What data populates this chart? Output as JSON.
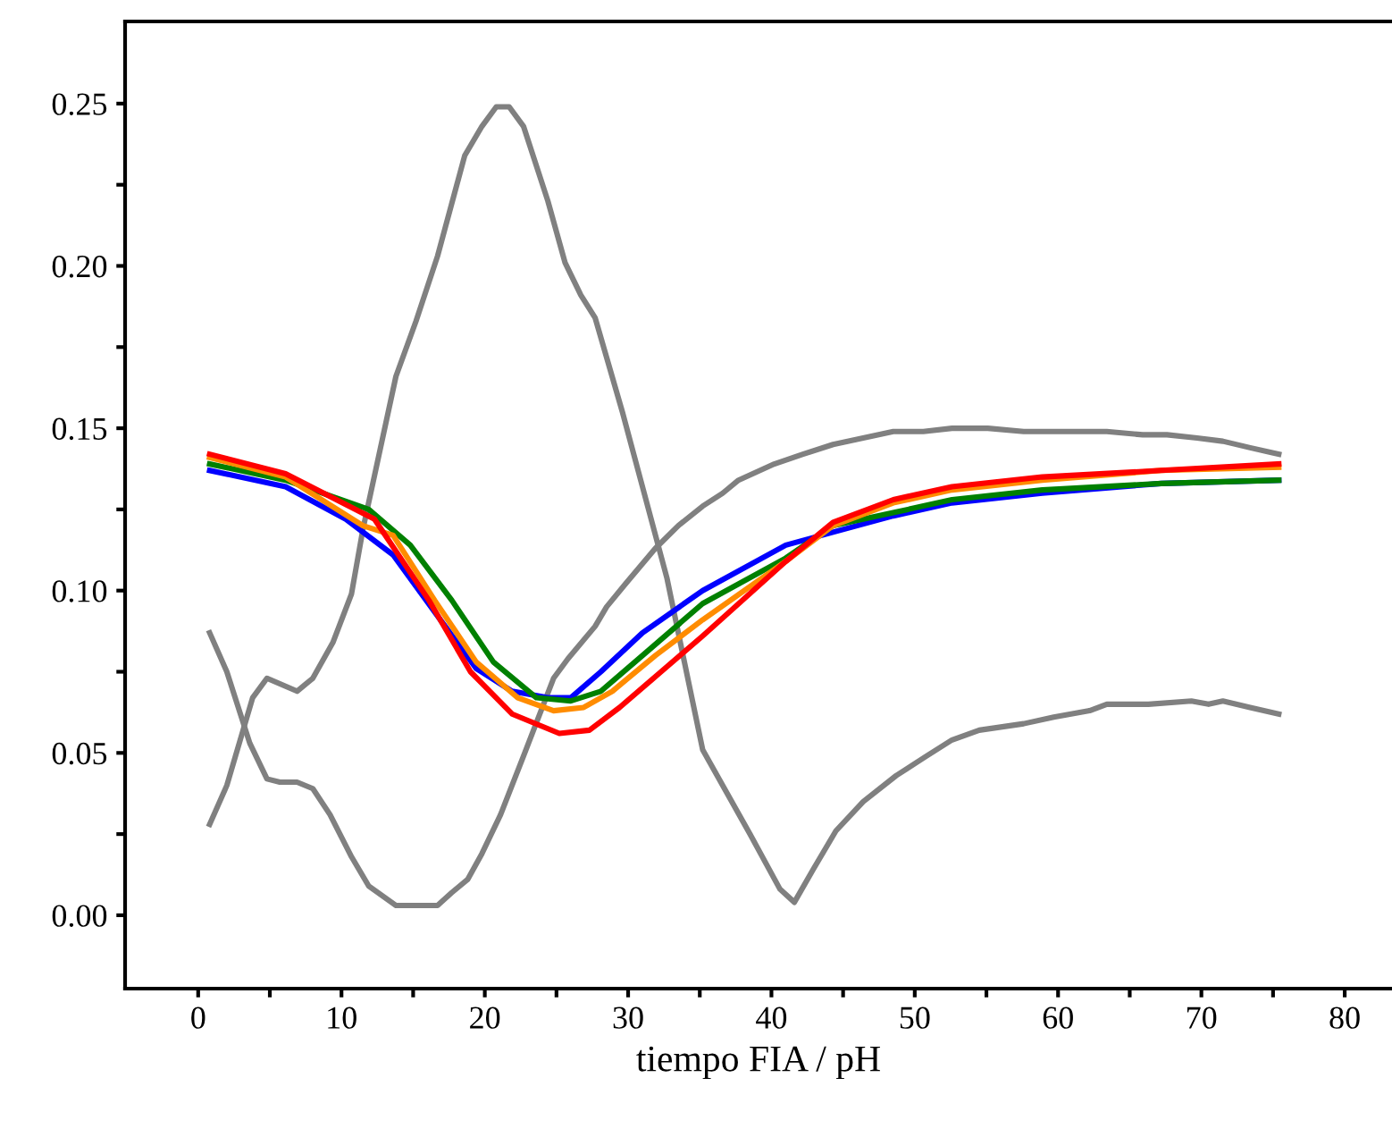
{
  "chart_data": {
    "type": "line",
    "xlabel": "tiempo FIA / pH",
    "xlim": [
      -5.1,
      83.3
    ],
    "ylim": [
      -0.0226,
      0.2753
    ],
    "xticks": [
      0,
      {
        "value": 5,
        "label": null
      },
      10,
      {
        "value": 15,
        "label": null
      },
      20,
      {
        "value": 25,
        "label": null
      },
      30,
      {
        "value": 35,
        "label": null
      },
      40,
      {
        "value": 45,
        "label": null
      },
      50,
      {
        "value": 55,
        "label": null
      },
      60,
      {
        "value": 65,
        "label": null
      },
      70,
      {
        "value": 75,
        "label": null
      },
      80
    ],
    "yticks": [
      {
        "value": 0,
        "label": "0.00"
      },
      {
        "value": 0.025,
        "label": null
      },
      {
        "value": 0.05,
        "label": "0.05"
      },
      {
        "value": 0.075,
        "label": null
      },
      {
        "value": 0.1,
        "label": "0.10"
      },
      {
        "value": 0.125,
        "label": null
      },
      {
        "value": 0.15,
        "label": "0.15"
      },
      {
        "value": 0.175,
        "label": null
      },
      {
        "value": 0.2,
        "label": "0.20"
      },
      {
        "value": 0.225,
        "label": null
      },
      {
        "value": 0.25,
        "label": "0.25"
      }
    ],
    "grid": false,
    "legend": false,
    "marker": "none",
    "line_style": "solid",
    "series": [
      {
        "color": "#808080",
        "x": [
          0.8,
          2.0,
          3.8,
          4.8,
          6.9,
          8.0,
          9.4,
          10.7,
          11.5,
          13.8,
          15.2,
          16.7,
          18.6,
          19.8,
          20.8,
          21.7,
          22.7,
          24.4,
          25.6,
          26.7,
          27.7,
          29.6,
          31.0,
          32.7,
          35.2,
          38.5,
          40.6,
          41.6,
          42.9,
          44.5,
          46.4,
          48.7,
          50.8,
          52.6,
          54.5,
          57.6,
          59.7,
          62.2,
          63.4,
          66.3,
          69.3,
          70.5,
          71.5,
          73.4,
          75.4
        ],
        "values": [
          0.028,
          0.04,
          0.067,
          0.073,
          0.069,
          0.073,
          0.084,
          0.099,
          0.119,
          0.166,
          0.183,
          0.203,
          0.234,
          0.243,
          0.249,
          0.249,
          0.243,
          0.22,
          0.201,
          0.191,
          0.184,
          0.155,
          0.132,
          0.104,
          0.051,
          0.025,
          0.008,
          0.004,
          0.014,
          0.026,
          0.035,
          0.043,
          0.049,
          0.054,
          0.057,
          0.059,
          0.061,
          0.063,
          0.065,
          0.065,
          0.066,
          0.065,
          0.066,
          0.064,
          0.062
        ]
      },
      {
        "color": "#808080",
        "x": [
          0.8,
          2.0,
          3.6,
          4.8,
          5.7,
          6.9,
          8.0,
          9.2,
          10.7,
          11.9,
          13.8,
          16.7,
          17.7,
          18.8,
          19.8,
          21.1,
          22.7,
          24.8,
          25.8,
          27.7,
          28.5,
          29.8,
          31.9,
          33.5,
          35.2,
          36.6,
          37.7,
          40.2,
          42.2,
          44.3,
          46.4,
          48.5,
          50.6,
          52.6,
          55.1,
          57.6,
          60.9,
          63.4,
          65.9,
          67.6,
          69.7,
          71.5,
          73.4,
          75.4
        ],
        "values": [
          0.087,
          0.075,
          0.053,
          0.042,
          0.041,
          0.041,
          0.039,
          0.031,
          0.018,
          0.009,
          0.003,
          0.003,
          0.007,
          0.011,
          0.019,
          0.031,
          0.049,
          0.073,
          0.079,
          0.089,
          0.095,
          0.102,
          0.113,
          0.12,
          0.126,
          0.13,
          0.134,
          0.139,
          0.142,
          0.145,
          0.147,
          0.149,
          0.149,
          0.15,
          0.15,
          0.149,
          0.149,
          0.149,
          0.148,
          0.148,
          0.147,
          0.146,
          0.144,
          0.142
        ]
      },
      {
        "color": "#0000ff",
        "x": [
          0.8,
          6.1,
          10.3,
          13.6,
          16.9,
          19.4,
          21.9,
          24.4,
          26.0,
          28.1,
          31.0,
          35.2,
          41.0,
          44.3,
          48.5,
          52.6,
          58.9,
          67.2,
          75.4
        ],
        "values": [
          0.137,
          0.132,
          0.122,
          0.111,
          0.091,
          0.076,
          0.069,
          0.067,
          0.067,
          0.075,
          0.087,
          0.1,
          0.114,
          0.118,
          0.123,
          0.127,
          0.13,
          0.133,
          0.134
        ]
      },
      {
        "color": "#008000",
        "x": [
          0.8,
          6.1,
          11.9,
          14.8,
          17.7,
          20.6,
          23.6,
          26.0,
          28.1,
          31.0,
          35.2,
          41.0,
          44.3,
          48.5,
          52.6,
          58.9,
          67.2,
          75.4
        ],
        "values": [
          0.139,
          0.134,
          0.125,
          0.114,
          0.097,
          0.078,
          0.067,
          0.066,
          0.069,
          0.08,
          0.096,
          0.11,
          0.12,
          0.124,
          0.128,
          0.131,
          0.133,
          0.134
        ]
      },
      {
        "color": "#ff8c00",
        "x": [
          0.8,
          6.1,
          11.5,
          13.6,
          16.5,
          19.4,
          22.3,
          24.8,
          26.9,
          28.9,
          31.9,
          35.2,
          41.0,
          44.3,
          48.5,
          52.6,
          58.9,
          67.2,
          75.4
        ],
        "values": [
          0.141,
          0.135,
          0.12,
          0.117,
          0.097,
          0.078,
          0.067,
          0.063,
          0.064,
          0.069,
          0.08,
          0.091,
          0.109,
          0.12,
          0.127,
          0.131,
          0.134,
          0.137,
          0.138
        ]
      },
      {
        "color": "#ff0000",
        "x": [
          0.8,
          6.1,
          12.3,
          16.1,
          19.0,
          21.9,
          25.2,
          27.3,
          29.4,
          32.3,
          35.2,
          41.0,
          44.3,
          48.5,
          52.6,
          58.9,
          67.2,
          75.4
        ],
        "values": [
          0.142,
          0.136,
          0.122,
          0.097,
          0.075,
          0.062,
          0.056,
          0.057,
          0.064,
          0.075,
          0.086,
          0.109,
          0.121,
          0.128,
          0.132,
          0.135,
          0.137,
          0.139
        ]
      }
    ]
  }
}
